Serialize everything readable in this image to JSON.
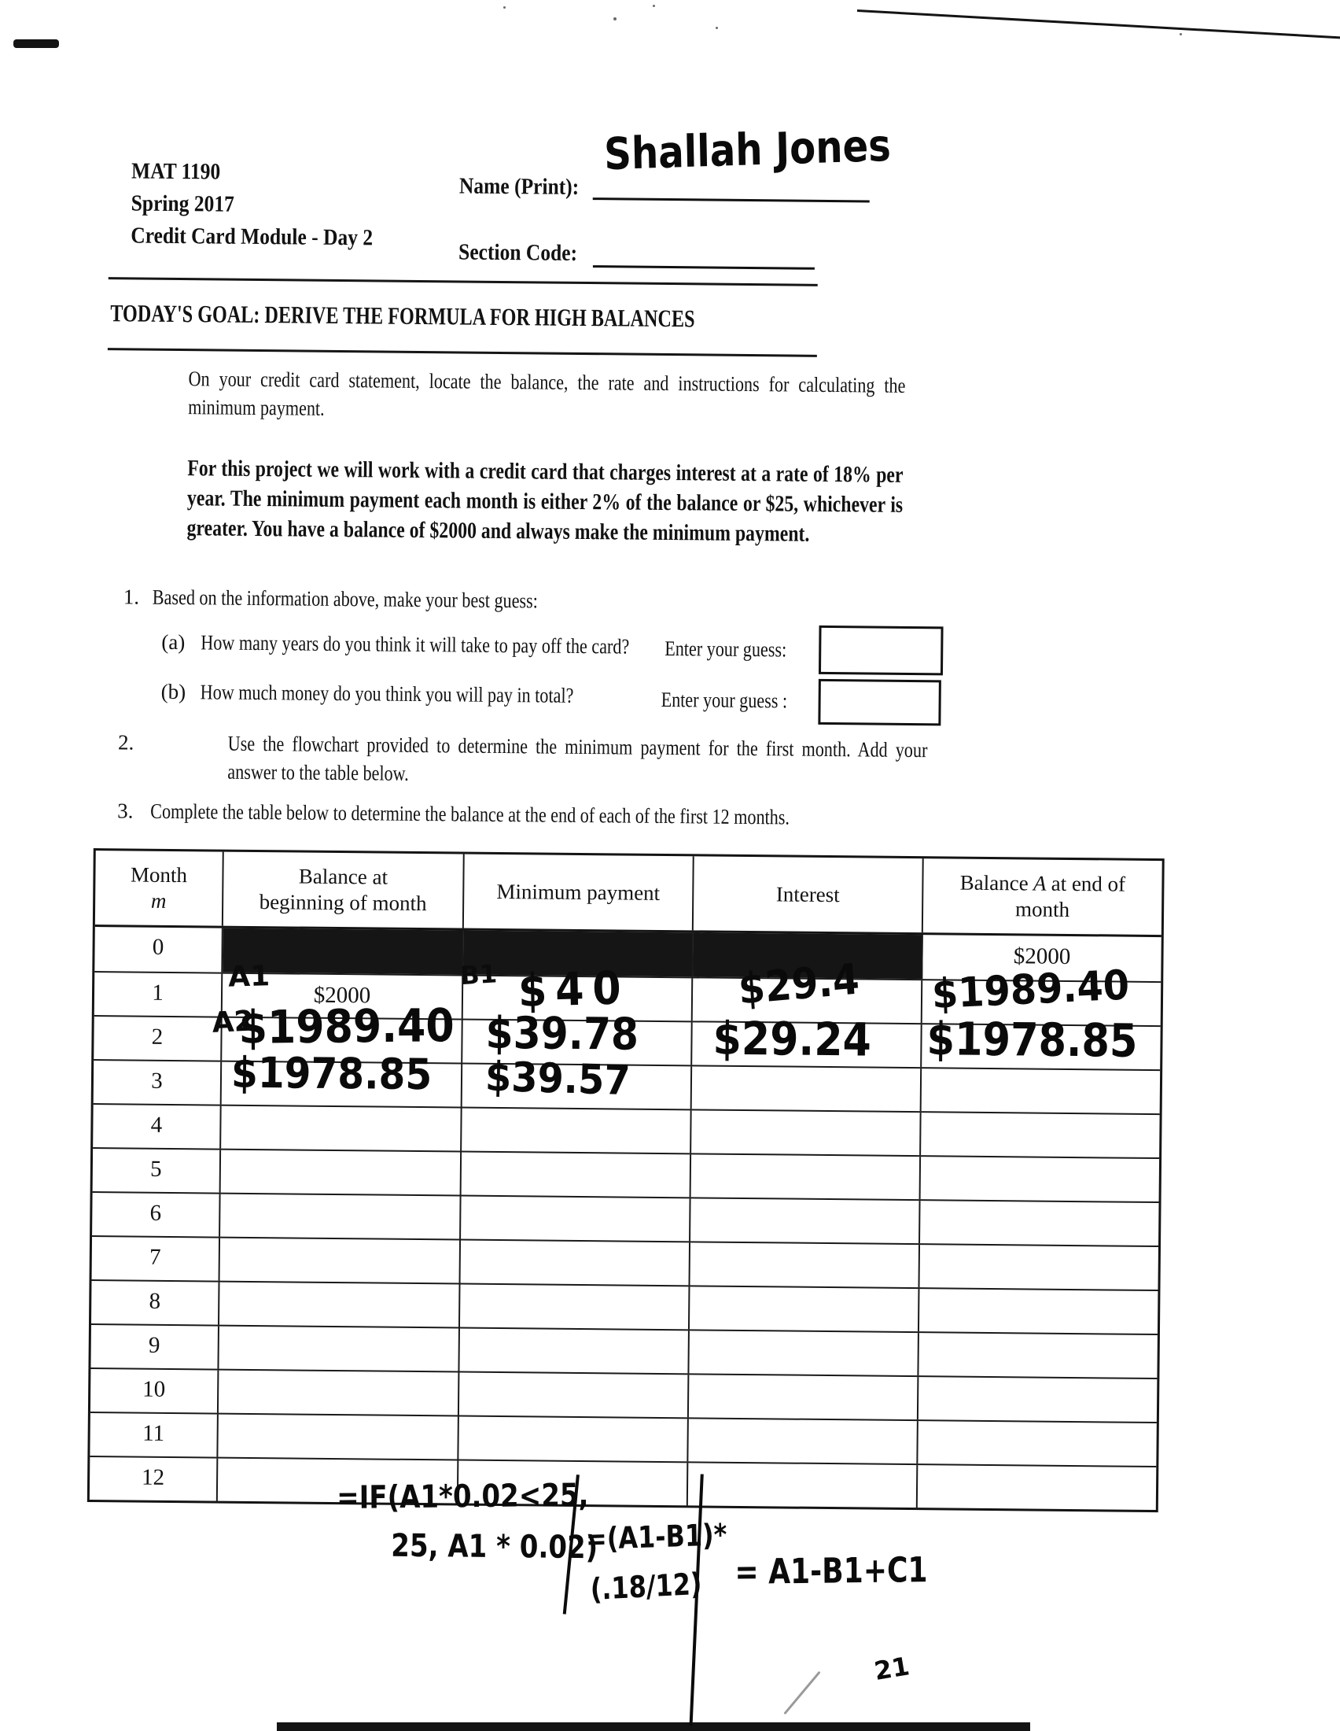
{
  "header": {
    "course": "MAT 1190",
    "term": "Spring 2017",
    "module": "Credit Card Module - Day 2",
    "name_label": "Name (Print):",
    "name_value": "Shallah Jones",
    "section_label": "Section Code:"
  },
  "goal": {
    "title": "TODAY'S GOAL: DERIVE THE FORMULA FOR HIGH BALANCES"
  },
  "body": {
    "intro": "On your credit card statement, locate the balance, the rate and instructions for calculating the minimum payment.",
    "project": "For this project we will work with a credit card that charges interest at a rate of 18% per year. The minimum payment each month is either 2% of the balance or $25, whichever is greater. You have a balance of $2000 and always make the minimum payment."
  },
  "q1": {
    "num": "1.",
    "text": "Based on the information above, make your best guess:",
    "a_num": "(a)",
    "a_text": "How many years do you think it will take to pay off the card?",
    "a_guess_label": "Enter your guess:",
    "b_num": "(b)",
    "b_text": "How much money do you think you will pay in total?",
    "b_guess_label": "Enter your guess :"
  },
  "q2": {
    "num": "2.",
    "text": "Use the flowchart provided to determine the minimum payment for the first month. Add your answer to the table below."
  },
  "q3": {
    "num": "3.",
    "text": "Complete the table below to determine the balance at the end of each of the first 12 months."
  },
  "table": {
    "headers": {
      "h1a": "Month",
      "h1b": "m",
      "h2a": "Balance at",
      "h2b": "beginning of month",
      "h3": "Minimum payment",
      "h4": "Interest",
      "h5a": "Balance",
      "h5b": " A ",
      "h5c": "at end of",
      "h5d": "month"
    },
    "rows": [
      {
        "month": "0",
        "cells": [
          {
            "black": true
          },
          {
            "black": true
          },
          {
            "black": true
          },
          {
            "text": "$2000"
          }
        ]
      },
      {
        "month": "1",
        "cells": [
          {
            "text": "$2000"
          },
          {
            "text": "$40",
            "hw": true
          },
          {
            "text": "$29.4",
            "hw": true
          },
          {
            "text": "$1989.40",
            "hw": true
          }
        ]
      },
      {
        "month": "2",
        "cells": [
          {
            "text": "$1989.40",
            "hw": true
          },
          {
            "text": "$39.78",
            "hw": true
          },
          {
            "text": "$29.24",
            "hw": true
          },
          {
            "text": "$1978.85",
            "hw": true
          }
        ]
      },
      {
        "month": "3",
        "cells": [
          {
            "text": "$1978.85",
            "hw": true
          },
          {
            "text": "$39.57",
            "hw": true
          },
          {},
          {}
        ]
      },
      {
        "month": "4",
        "cells": [
          {},
          {},
          {},
          {}
        ]
      },
      {
        "month": "5",
        "cells": [
          {},
          {},
          {},
          {}
        ]
      },
      {
        "month": "6",
        "cells": [
          {},
          {},
          {},
          {}
        ]
      },
      {
        "month": "7",
        "cells": [
          {},
          {},
          {},
          {}
        ]
      },
      {
        "month": "8",
        "cells": [
          {},
          {},
          {},
          {}
        ]
      },
      {
        "month": "9",
        "cells": [
          {},
          {},
          {},
          {}
        ]
      },
      {
        "month": "10",
        "cells": [
          {},
          {},
          {},
          {}
        ]
      },
      {
        "month": "11",
        "cells": [
          {},
          {},
          {},
          {}
        ]
      },
      {
        "month": "12",
        "cells": [
          {},
          {},
          {},
          {}
        ]
      }
    ]
  },
  "notes": {
    "a1": "A1",
    "a2": "A2",
    "b1": "B1"
  },
  "formulas": {
    "min_payment_l1": "=IF(A1*0.02<25,",
    "min_payment_l2": "25, A1 * 0.02)",
    "interest_l1": "=(A1-B1)*",
    "interest_l2": "(.18/12)",
    "balance": "= A1-B1+C1",
    "page_mark": "21"
  }
}
